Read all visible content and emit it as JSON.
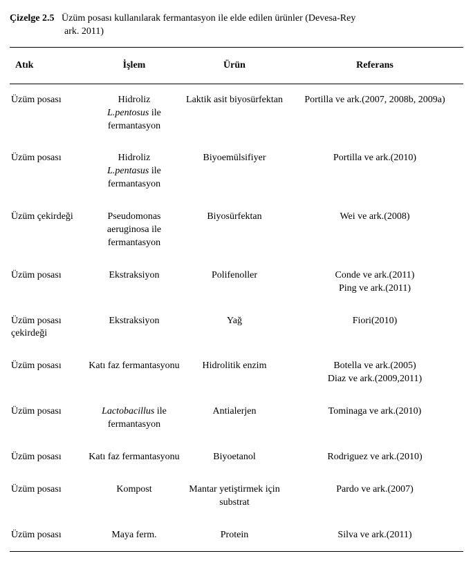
{
  "caption": {
    "label": "Çizelge 2.5",
    "line1": "Üzüm posası kullanılarak fermantasyon ile elde edilen ürünler (Devesa-Rey",
    "line2": "ark. 2011)"
  },
  "headers": {
    "atik": "Atık",
    "islem": "İşlem",
    "urun": "Ürün",
    "referans": "Referans"
  },
  "rows": [
    {
      "atik": "Üzüm posası",
      "islem": "Hidroliz<br><span class=\"italic\">L.pentosus</span> ile fermantasyon",
      "urun": "Laktik asit biyosürfektan",
      "referans": "Portilla ve ark.(2007, 2008b, 2009a)"
    },
    {
      "atik": "Üzüm posası",
      "islem": "Hidroliz<br><span class=\"italic\">L.pentasus</span> ile fermantasyon",
      "urun": "Biyoemülsifiyer",
      "referans": "Portilla ve ark.(2010)"
    },
    {
      "atik": "Üzüm çekirdeği",
      "islem": "Pseudomonas aeruginosa ile fermantasyon",
      "urun": "Biyosürfektan",
      "referans": "Wei  ve ark.(2008)"
    },
    {
      "atik": "Üzüm posası",
      "islem": "Ekstraksiyon",
      "urun": "Polifenoller",
      "referans": "Conde ve ark.(2011)<br>Ping ve ark.(2011)"
    },
    {
      "atik": "Üzüm posası çekirdeği",
      "islem": "Ekstraksiyon",
      "urun": "Yağ",
      "referans": "Fiori(2010)"
    },
    {
      "atik": "Üzüm posası",
      "islem": "Katı faz fermantasyonu",
      "urun": "Hidrolitik enzim",
      "referans": "Botella ve ark.(2005)<br>Diaz ve ark.(2009,2011)"
    },
    {
      "atik": "Üzüm posası",
      "islem": "<span class=\"italic\">Lactobacillus</span> ile fermantasyon",
      "urun": "Antialerjen",
      "referans": "Tominaga ve ark.(2010)"
    },
    {
      "atik": "Üzüm posası",
      "islem": "Katı faz fermantasyonu",
      "urun": "Biyoetanol",
      "referans": "Rodriguez ve ark.(2010)"
    },
    {
      "atik": "Üzüm posası",
      "islem": "Kompost",
      "urun": "Mantar yetiştirmek için substrat",
      "referans": "Pardo ve ark.(2007)"
    },
    {
      "atik": "Üzüm posası",
      "islem": "Maya ferm.",
      "urun": "Protein",
      "referans": "Silva ve ark.(2011)"
    }
  ]
}
